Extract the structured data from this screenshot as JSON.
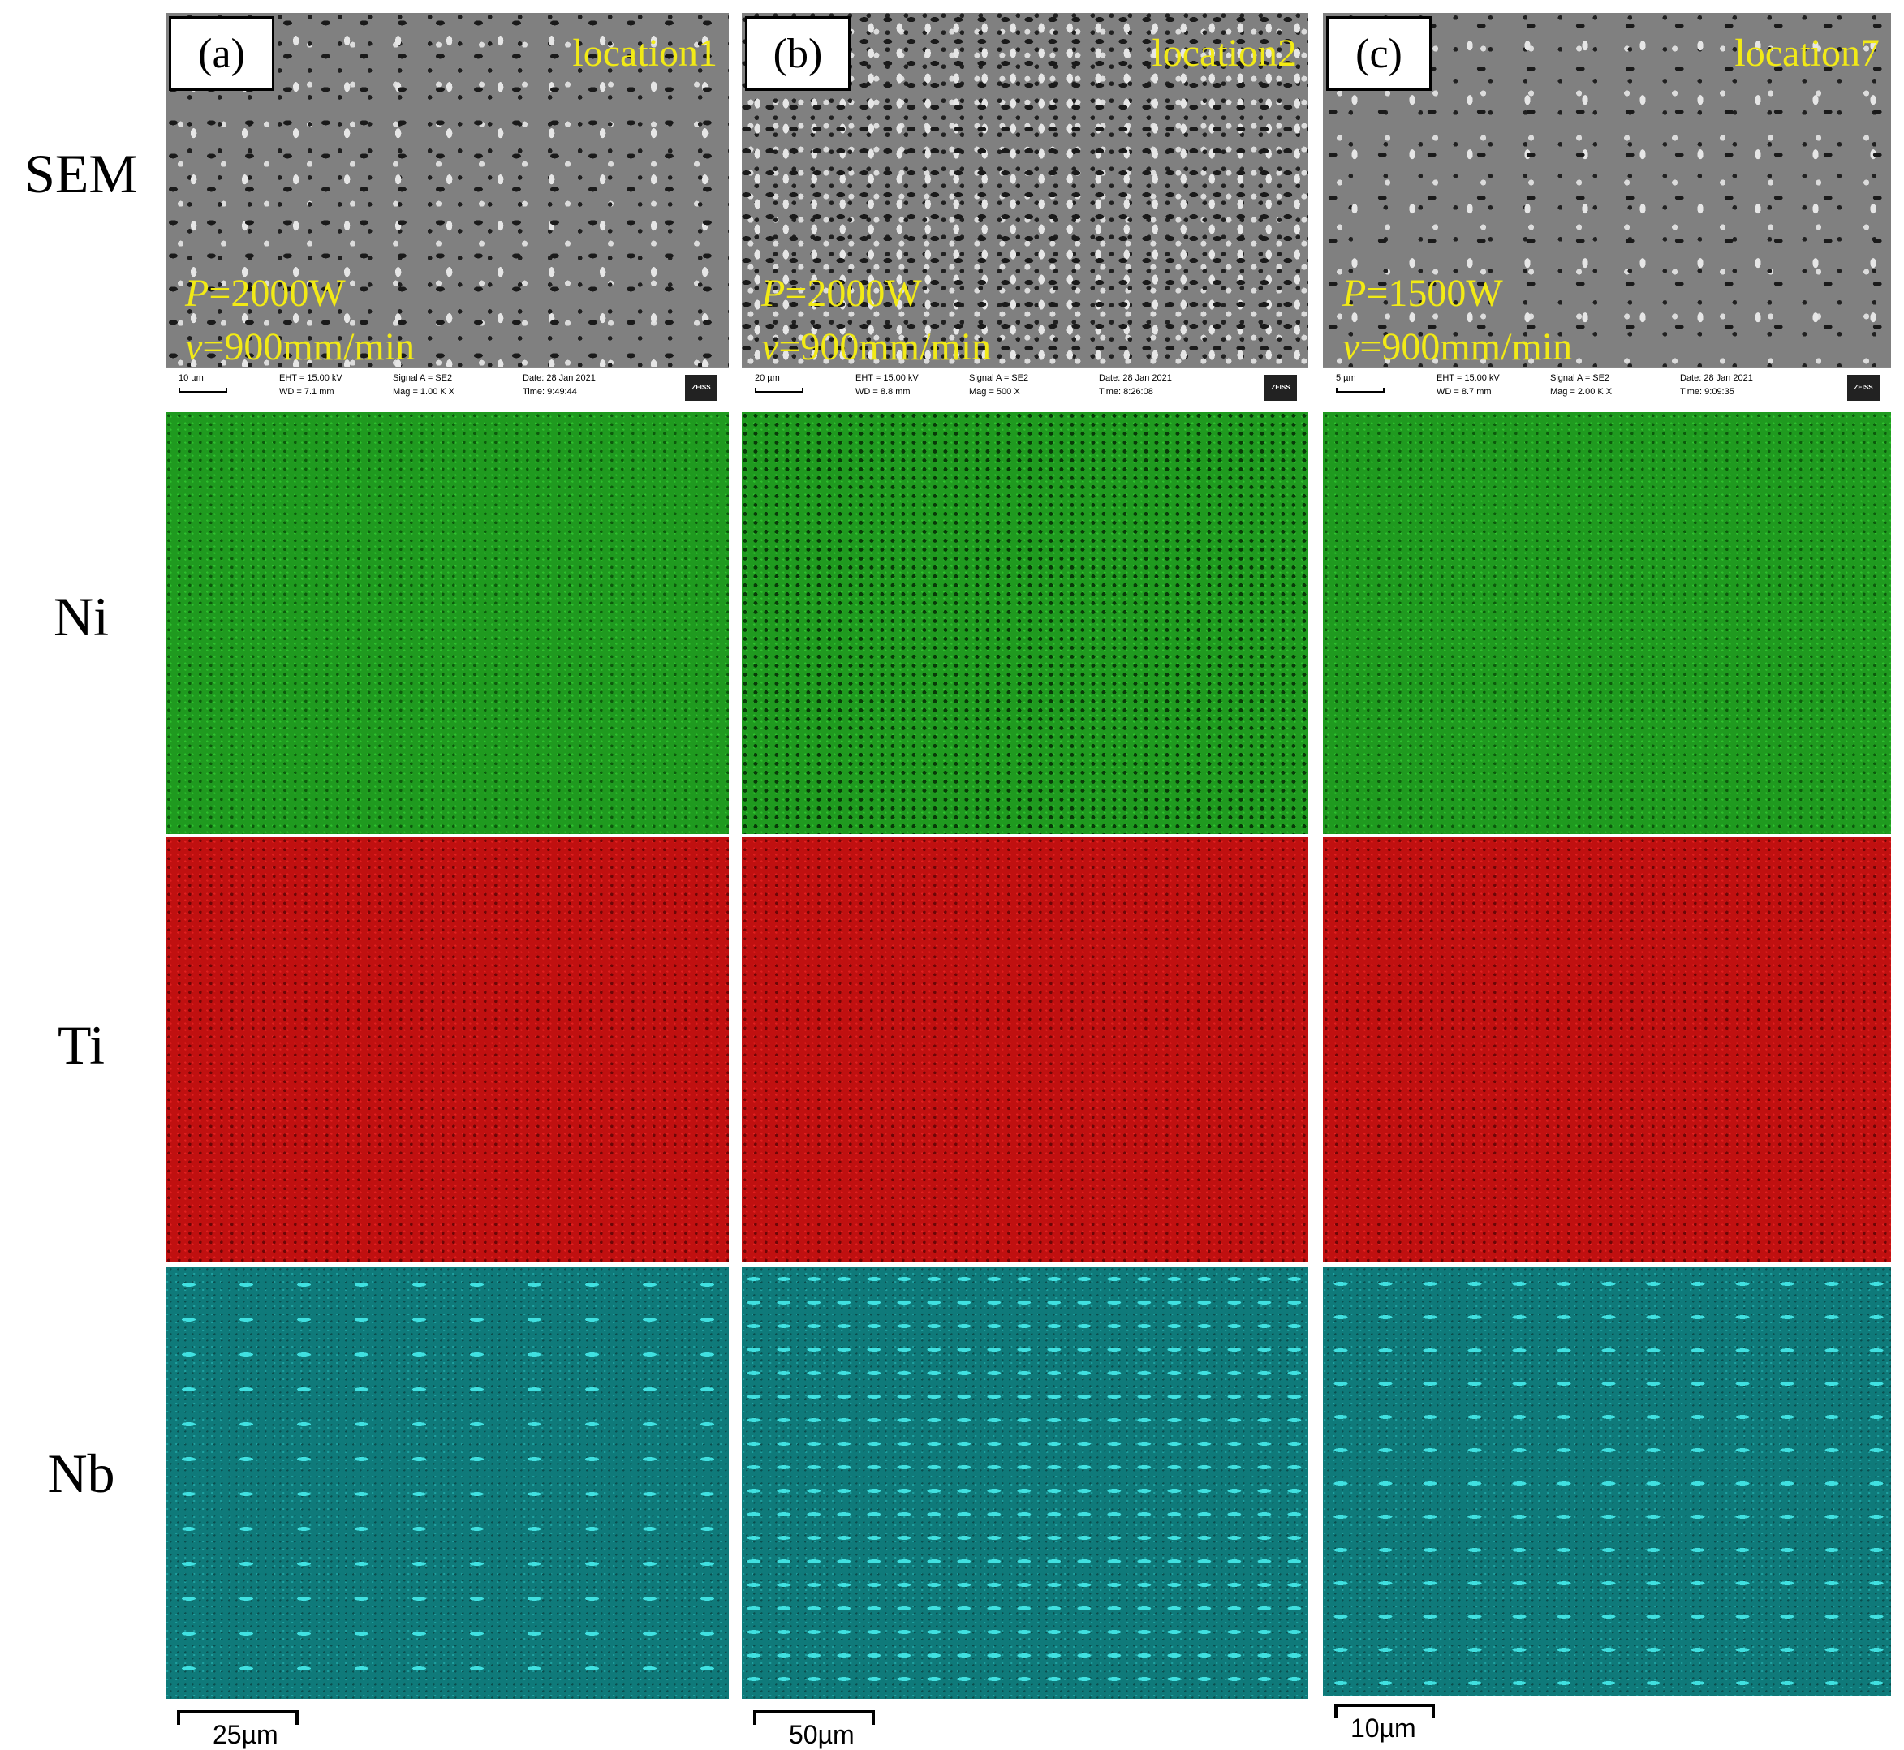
{
  "row_labels": [
    "SEM",
    "Ni",
    "Ti",
    "Nb"
  ],
  "panels": [
    {
      "tag": "(a)",
      "location": "location1",
      "power": "2000W",
      "speed": "900mm/min",
      "info": {
        "scale": "10 µm",
        "eht": "EHT = 15.00 kV",
        "wd": "WD = 7.1 mm",
        "signal": "Signal A = SE2",
        "mag": "Mag =    1.00 K X",
        "date": "Date: 28 Jan 2021",
        "time": "Time: 9:49:44"
      },
      "map_scale": "25µm"
    },
    {
      "tag": "(b)",
      "location": "location2",
      "power": "2000W",
      "speed": "900mm/min",
      "info": {
        "scale": "20 µm",
        "eht": "EHT = 15.00 kV",
        "wd": "WD = 8.8 mm",
        "signal": "Signal A = SE2",
        "mag": "Mag =    500 X",
        "date": "Date: 28 Jan 2021",
        "time": "Time: 8:26:08"
      },
      "map_scale": "50µm"
    },
    {
      "tag": "(c)",
      "location": "location7",
      "power": "1500W",
      "speed": "900mm/min",
      "info": {
        "scale": "5 µm",
        "eht": "EHT = 15.00 kV",
        "wd": "WD = 8.7 mm",
        "signal": "Signal A = SE2",
        "mag": "Mag =    2.00 K X",
        "date": "Date: 28 Jan 2021",
        "time": "Time: 9:09:35"
      },
      "map_scale": "10µm"
    }
  ],
  "param_prefix": {
    "p": "P",
    "v": "v"
  },
  "zeiss_label": "ZEISS"
}
